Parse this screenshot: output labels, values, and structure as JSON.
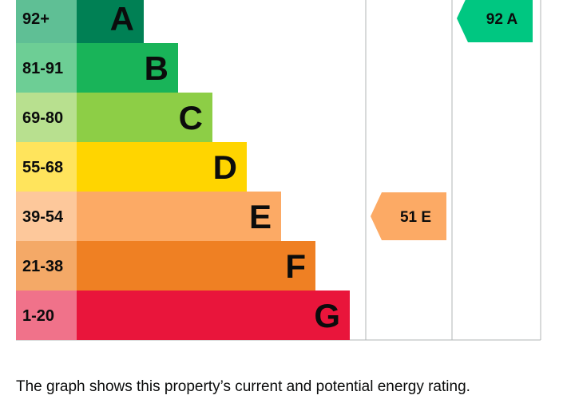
{
  "chart_data": {
    "type": "bar",
    "title": "",
    "xlabel": "",
    "ylabel": "",
    "bands": [
      {
        "letter": "A",
        "range": "92+",
        "color": "#008054",
        "range_color": "#5fbf95",
        "label_color": "#0b0c0c"
      },
      {
        "letter": "B",
        "range": "81-91",
        "color": "#19b459",
        "range_color": "#6dce95",
        "label_color": "#0b0c0c"
      },
      {
        "letter": "C",
        "range": "69-80",
        "color": "#8dce46",
        "range_color": "#b8e08f",
        "label_color": "#0b0c0c"
      },
      {
        "letter": "D",
        "range": "55-68",
        "color": "#ffd500",
        "range_color": "#ffe45c",
        "label_color": "#0b0c0c"
      },
      {
        "letter": "E",
        "range": "39-54",
        "color": "#fcaa65",
        "range_color": "#fdc89b",
        "label_color": "#0b0c0c"
      },
      {
        "letter": "F",
        "range": "21-38",
        "color": "#ef8023",
        "range_color": "#f4a967",
        "label_color": "#0b0c0c"
      },
      {
        "letter": "G",
        "range": "1-20",
        "color": "#e9153b",
        "range_color": "#f0728a",
        "label_color": "#0b0c0c"
      }
    ],
    "ratings": [
      {
        "kind": "current",
        "value": 51,
        "band": "E",
        "label": "51 E",
        "color": "#fcaa65"
      },
      {
        "kind": "potential",
        "value": 92,
        "band": "A",
        "label": "92 A",
        "color": "#00c781"
      }
    ]
  },
  "caption": "The graph shows this property’s current and potential energy rating."
}
